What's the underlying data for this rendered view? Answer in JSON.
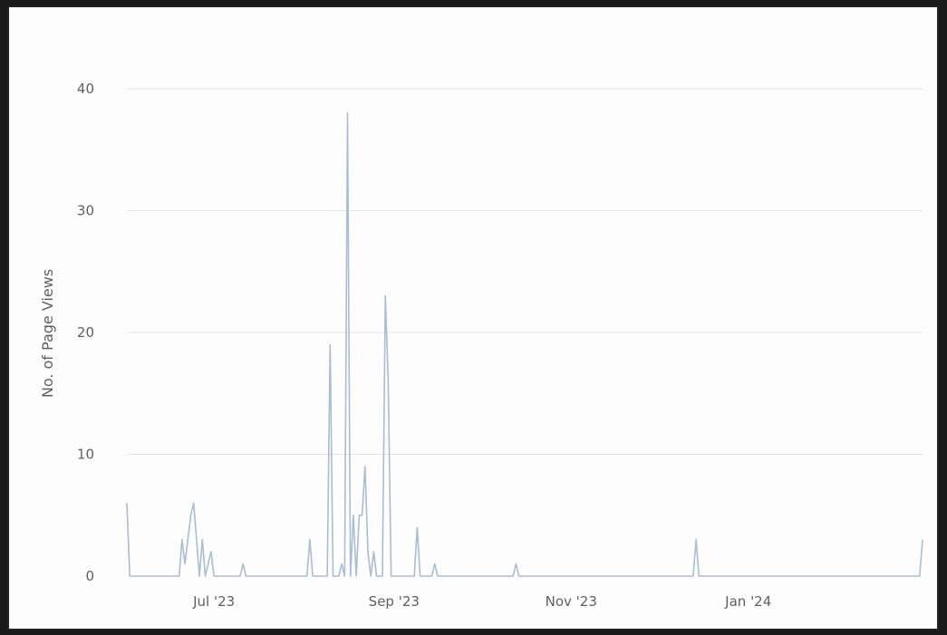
{
  "chart_data": {
    "type": "line",
    "title": "",
    "xlabel": "",
    "ylabel": "No. of Page Views",
    "ylim": [
      0,
      40
    ],
    "y_ticks": [
      0,
      10,
      20,
      30,
      40
    ],
    "xlim": [
      "2023-06-01",
      "2024-03-01"
    ],
    "x_ticks": [
      {
        "date": "2023-07-01",
        "label": "Jul '23"
      },
      {
        "date": "2023-09-01",
        "label": "Sep '23"
      },
      {
        "date": "2023-11-01",
        "label": "Nov '23"
      },
      {
        "date": "2024-01-01",
        "label": "Jan '24"
      }
    ],
    "grid": true,
    "legend": "none",
    "series": [
      {
        "color": "#a9bdd3",
        "points": [
          [
            "2023-06-01",
            6
          ],
          [
            "2023-06-02",
            0
          ],
          [
            "2023-06-19",
            0
          ],
          [
            "2023-06-20",
            3
          ],
          [
            "2023-06-21",
            1
          ],
          [
            "2023-06-22",
            3
          ],
          [
            "2023-06-23",
            5
          ],
          [
            "2023-06-24",
            6
          ],
          [
            "2023-06-25",
            3
          ],
          [
            "2023-06-26",
            0
          ],
          [
            "2023-06-27",
            3
          ],
          [
            "2023-06-28",
            0
          ],
          [
            "2023-06-30",
            2
          ],
          [
            "2023-07-01",
            0
          ],
          [
            "2023-07-10",
            0
          ],
          [
            "2023-07-11",
            1
          ],
          [
            "2023-07-12",
            0
          ],
          [
            "2023-08-02",
            0
          ],
          [
            "2023-08-03",
            3
          ],
          [
            "2023-08-04",
            0
          ],
          [
            "2023-08-09",
            0
          ],
          [
            "2023-08-10",
            19
          ],
          [
            "2023-08-11",
            0
          ],
          [
            "2023-08-13",
            0
          ],
          [
            "2023-08-14",
            1
          ],
          [
            "2023-08-15",
            0
          ],
          [
            "2023-08-16",
            38
          ],
          [
            "2023-08-17",
            0
          ],
          [
            "2023-08-18",
            5
          ],
          [
            "2023-08-19",
            0
          ],
          [
            "2023-08-20",
            5
          ],
          [
            "2023-08-21",
            5
          ],
          [
            "2023-08-22",
            9
          ],
          [
            "2023-08-23",
            2
          ],
          [
            "2023-08-24",
            0
          ],
          [
            "2023-08-25",
            2
          ],
          [
            "2023-08-26",
            0
          ],
          [
            "2023-08-28",
            0
          ],
          [
            "2023-08-29",
            23
          ],
          [
            "2023-08-30",
            16
          ],
          [
            "2023-08-31",
            0
          ],
          [
            "2023-09-08",
            0
          ],
          [
            "2023-09-09",
            4
          ],
          [
            "2023-09-10",
            0
          ],
          [
            "2023-09-14",
            0
          ],
          [
            "2023-09-15",
            1
          ],
          [
            "2023-09-16",
            0
          ],
          [
            "2023-10-12",
            0
          ],
          [
            "2023-10-13",
            1
          ],
          [
            "2023-10-14",
            0
          ],
          [
            "2023-12-13",
            0
          ],
          [
            "2023-12-14",
            3
          ],
          [
            "2023-12-15",
            0
          ],
          [
            "2024-02-29",
            0
          ],
          [
            "2024-03-01",
            3
          ]
        ]
      }
    ]
  }
}
